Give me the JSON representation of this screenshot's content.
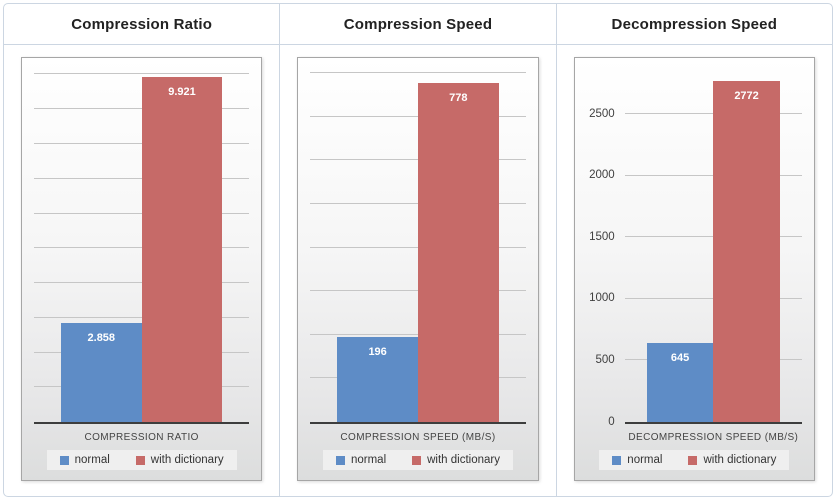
{
  "legend": {
    "items": [
      {
        "label": "normal"
      },
      {
        "label": "with dictionary"
      }
    ]
  },
  "chart_data": [
    {
      "type": "bar",
      "title": "Compression Ratio",
      "xlabel": "COMPRESSION RATIO",
      "ylabel": "",
      "categories": [
        "normal",
        "with dictionary"
      ],
      "values": [
        2.858,
        9.921
      ],
      "value_labels": [
        "2.858",
        "9.921"
      ],
      "legend": [
        "normal",
        "with dictionary"
      ],
      "legend_position": "bottom",
      "grid": true,
      "grid_step": 1,
      "ylim": [
        0,
        10.1
      ],
      "y_ticks": []
    },
    {
      "type": "bar",
      "title": "Compression Speed",
      "xlabel": "COMPRESSION SPEED (MB/S)",
      "ylabel": "",
      "categories": [
        "normal",
        "with dictionary"
      ],
      "values": [
        196,
        778
      ],
      "value_labels": [
        "196",
        "778"
      ],
      "legend": [
        "normal",
        "with dictionary"
      ],
      "legend_position": "bottom",
      "grid": true,
      "grid_step": 100,
      "ylim": [
        0,
        805
      ],
      "y_ticks": []
    },
    {
      "type": "bar",
      "title": "Decompression Speed",
      "xlabel": "DECOMPRESSION SPEED (MB/S)",
      "ylabel": "",
      "categories": [
        "normal",
        "with dictionary"
      ],
      "values": [
        645,
        2772
      ],
      "value_labels": [
        "645",
        "2772"
      ],
      "legend": [
        "normal",
        "with dictionary"
      ],
      "legend_position": "bottom",
      "grid": true,
      "grid_step": 500,
      "ylim": [
        0,
        2850
      ],
      "y_ticks": [
        0,
        500,
        1000,
        1500,
        2000,
        2500
      ]
    }
  ],
  "colors": {
    "series": [
      "#5e8cc6",
      "#c66a68"
    ],
    "axis_line": "#3d3d3d",
    "gridline": "#c6c6c6",
    "title_text": "#222222",
    "tick_text": "#404040",
    "axis_label_text": "#444444",
    "legend_text": "#333333",
    "bar_value_text": "#ffffff",
    "panel_border": "#ccd6e2",
    "chart_border": "#a6a6a6",
    "chart_bg_top": "#ffffff",
    "chart_bg_bottom": "#dcdddd",
    "legend_bg": "#efefef"
  }
}
